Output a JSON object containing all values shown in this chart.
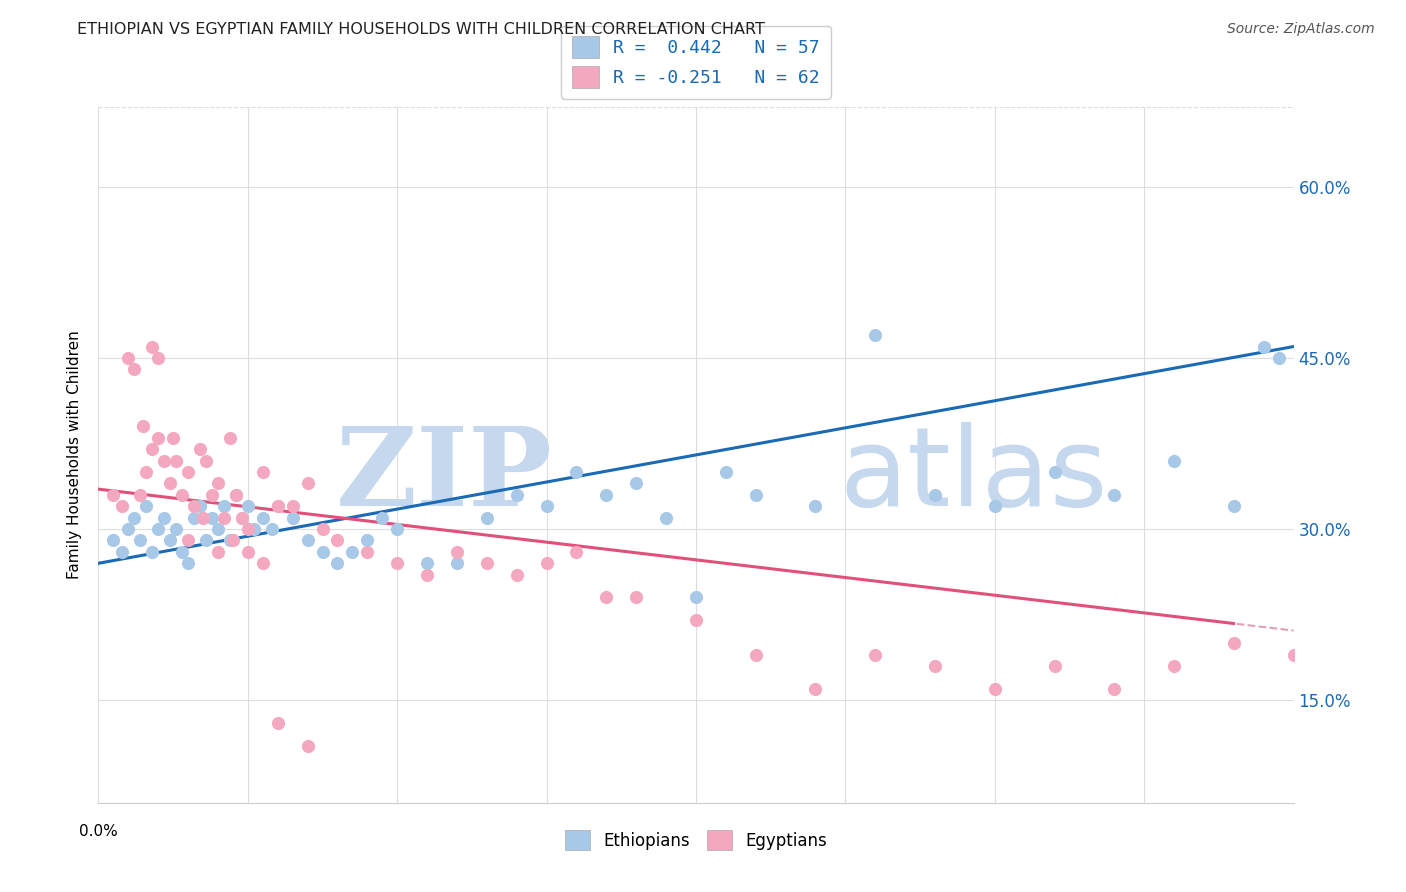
{
  "title": "ETHIOPIAN VS EGYPTIAN FAMILY HOUSEHOLDS WITH CHILDREN CORRELATION CHART",
  "source": "Source: ZipAtlas.com",
  "ylabel": "Family Households with Children",
  "y_ticks": [
    0.15,
    0.3,
    0.45,
    0.6
  ],
  "y_tick_labels": [
    "15.0%",
    "30.0%",
    "45.0%",
    "60.0%"
  ],
  "ethiopian_color": "#a8c8e8",
  "egyptian_color": "#f4a8c0",
  "trendline_ethiopian_color": "#1a6ab5",
  "trendline_egyptian_color": "#e0507a",
  "trendline_egyptian_dashed_color": "#e0a0b8",
  "R_ethiopian": 0.442,
  "N_ethiopian": 57,
  "R_egyptian": -0.251,
  "N_egyptian": 62,
  "eth_intercept": 0.27,
  "eth_slope": 0.475,
  "egy_intercept": 0.335,
  "egy_slope": -0.31,
  "ethiopians_x": [
    0.005,
    0.008,
    0.01,
    0.012,
    0.014,
    0.016,
    0.018,
    0.02,
    0.022,
    0.024,
    0.026,
    0.028,
    0.03,
    0.032,
    0.034,
    0.036,
    0.038,
    0.04,
    0.042,
    0.044,
    0.046,
    0.048,
    0.05,
    0.052,
    0.055,
    0.058,
    0.06,
    0.065,
    0.07,
    0.075,
    0.08,
    0.085,
    0.09,
    0.095,
    0.1,
    0.11,
    0.12,
    0.13,
    0.14,
    0.15,
    0.16,
    0.17,
    0.18,
    0.19,
    0.2,
    0.21,
    0.22,
    0.24,
    0.26,
    0.28,
    0.3,
    0.32,
    0.34,
    0.36,
    0.38,
    0.39,
    0.395
  ],
  "ethiopians_y": [
    0.29,
    0.28,
    0.3,
    0.31,
    0.29,
    0.32,
    0.28,
    0.3,
    0.31,
    0.29,
    0.3,
    0.28,
    0.27,
    0.31,
    0.32,
    0.29,
    0.31,
    0.3,
    0.32,
    0.29,
    0.33,
    0.31,
    0.32,
    0.3,
    0.31,
    0.3,
    0.32,
    0.31,
    0.29,
    0.28,
    0.27,
    0.28,
    0.29,
    0.31,
    0.3,
    0.27,
    0.27,
    0.31,
    0.33,
    0.32,
    0.35,
    0.33,
    0.34,
    0.31,
    0.24,
    0.35,
    0.33,
    0.32,
    0.47,
    0.33,
    0.32,
    0.35,
    0.33,
    0.36,
    0.32,
    0.46,
    0.45
  ],
  "egyptians_x": [
    0.005,
    0.008,
    0.01,
    0.012,
    0.014,
    0.016,
    0.018,
    0.02,
    0.022,
    0.024,
    0.026,
    0.028,
    0.03,
    0.032,
    0.034,
    0.036,
    0.038,
    0.04,
    0.042,
    0.044,
    0.046,
    0.048,
    0.05,
    0.055,
    0.06,
    0.065,
    0.07,
    0.075,
    0.08,
    0.09,
    0.1,
    0.11,
    0.12,
    0.13,
    0.14,
    0.15,
    0.16,
    0.17,
    0.18,
    0.2,
    0.22,
    0.24,
    0.26,
    0.28,
    0.3,
    0.32,
    0.34,
    0.36,
    0.38,
    0.4,
    0.015,
    0.018,
    0.02,
    0.025,
    0.03,
    0.035,
    0.04,
    0.045,
    0.05,
    0.055,
    0.06,
    0.07
  ],
  "egyptians_y": [
    0.33,
    0.32,
    0.45,
    0.44,
    0.33,
    0.35,
    0.37,
    0.38,
    0.36,
    0.34,
    0.36,
    0.33,
    0.35,
    0.32,
    0.37,
    0.36,
    0.33,
    0.34,
    0.31,
    0.38,
    0.33,
    0.31,
    0.3,
    0.35,
    0.32,
    0.32,
    0.34,
    0.3,
    0.29,
    0.28,
    0.27,
    0.26,
    0.28,
    0.27,
    0.26,
    0.27,
    0.28,
    0.24,
    0.24,
    0.22,
    0.19,
    0.16,
    0.19,
    0.18,
    0.16,
    0.18,
    0.16,
    0.18,
    0.2,
    0.19,
    0.39,
    0.46,
    0.45,
    0.38,
    0.29,
    0.31,
    0.28,
    0.29,
    0.28,
    0.27,
    0.13,
    0.11
  ],
  "background_color": "#ffffff",
  "grid_color": "#dddddd",
  "watermark_zip": "ZIP",
  "watermark_atlas": "atlas",
  "watermark_color": "#c5d8ee"
}
